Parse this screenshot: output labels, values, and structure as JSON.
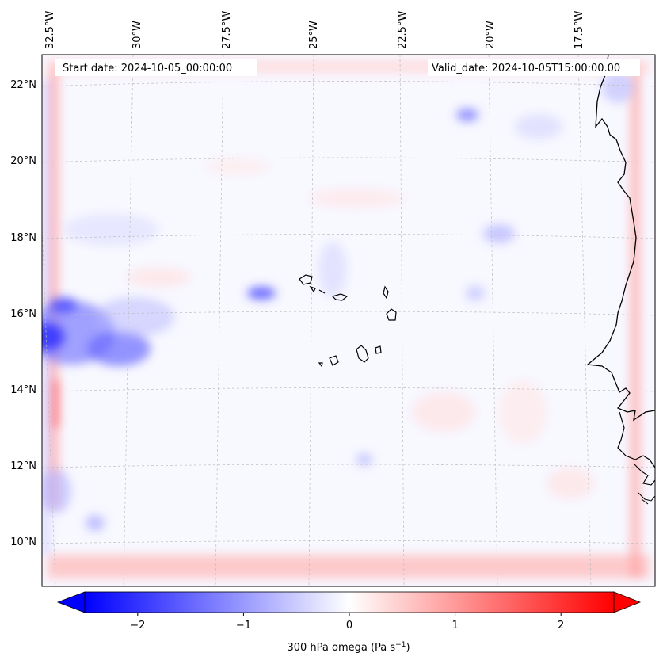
{
  "header": {
    "start_date": "Start date: 2024-10-05_00:00:00",
    "valid_date": "Valid_date: 2024-10-05T15:00:00.00"
  },
  "lon_labels": [
    "32.5°W",
    "30°W",
    "27.5°W",
    "25°W",
    "22.5°W",
    "20°W",
    "17.5°W"
  ],
  "lat_labels": [
    "22°N",
    "20°N",
    "18°N",
    "16°N",
    "14°N",
    "12°N",
    "10°N"
  ],
  "colorbar": {
    "label": "300 hPa omega (Pa s",
    "label_exp": "−1",
    "label_close": ")",
    "ticks": [
      "−2",
      "−1",
      "0",
      "1",
      "2"
    ],
    "tick_values": [
      -2,
      -1,
      0,
      1,
      2
    ],
    "range": [
      -2.5,
      2.5
    ],
    "colors": {
      "negative": "#0000ff",
      "zero": "#ffffff",
      "positive": "#ff0000"
    }
  },
  "map": {
    "coastline_color": "#000000",
    "gridline_color": "#bdbdbd",
    "field_background": "#f8f8ff"
  }
}
